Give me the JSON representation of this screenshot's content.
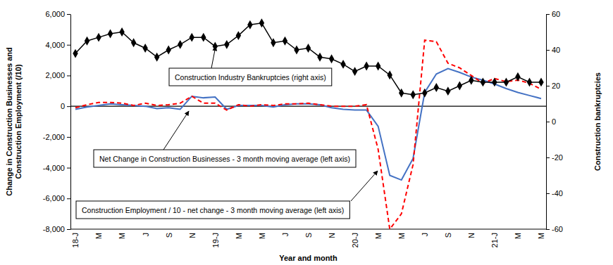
{
  "chart_data": {
    "type": "line",
    "xlabel": "Year and month",
    "ylabel": "Change in Construction Businesses and Construction Employment (/10)",
    "y2label": "Construction bankruptcies",
    "categories": [
      "18-J",
      null,
      "M",
      null,
      "M",
      null,
      "J",
      null,
      "S",
      null,
      "N",
      null,
      "19-J",
      null,
      "M",
      null,
      "M",
      null,
      "J",
      null,
      "S",
      null,
      "N",
      null,
      "20-J",
      null,
      "M",
      null,
      "M",
      null,
      "J",
      null,
      "S",
      null,
      "N",
      null,
      "21-J",
      null,
      "M",
      null,
      "M"
    ],
    "ylim": [
      -8000,
      6000
    ],
    "yticks": [
      {
        "value": -8000,
        "label": "-8,000"
      },
      {
        "value": -6000,
        "label": "-6,000"
      },
      {
        "value": -4000,
        "label": "-4,000"
      },
      {
        "value": -2000,
        "label": "-2,000"
      },
      0,
      {
        "value": 2000,
        "label": "2,000"
      },
      {
        "value": 4000,
        "label": "4,000"
      },
      {
        "value": 6000,
        "label": "6,000"
      }
    ],
    "y2lim": [
      -60,
      60
    ],
    "y2ticks": [
      -60,
      -40,
      -20,
      0,
      20,
      40,
      60
    ],
    "series": [
      {
        "name": "Construction Industry Bankruptcies (right axis)",
        "color": "#000000",
        "axis": "y2",
        "marker": "diamond",
        "line_style": "solid",
        "values": [
          38,
          45,
          47,
          49,
          50,
          44,
          41,
          36,
          40,
          43,
          47,
          47,
          42,
          43,
          48,
          54,
          55,
          44,
          45,
          40,
          41,
          36,
          35,
          32,
          28,
          31,
          31,
          26,
          16,
          15,
          16,
          19,
          17,
          20,
          23,
          22,
          22,
          22,
          25,
          22,
          22
        ]
      },
      {
        "name": "Net Change in Construction Businesses - 3 month moving average (left axis)",
        "color": "#4472c4",
        "line_style": "solid",
        "values": [
          -200,
          -50,
          50,
          150,
          100,
          50,
          0,
          -150,
          -100,
          -200,
          650,
          550,
          600,
          -200,
          50,
          50,
          50,
          -50,
          100,
          150,
          150,
          100,
          -100,
          -200,
          -250,
          -250,
          -1300,
          -4500,
          -4800,
          -3400,
          900,
          2100,
          2450,
          2200,
          1900,
          1700,
          1450,
          1150,
          900,
          700,
          500
        ]
      },
      {
        "name": "Construction Employment / 10 - net change - 3 month moving average (left axis)",
        "color": "#ff0000",
        "line_style": "dashed",
        "values": [
          -100,
          100,
          250,
          250,
          200,
          50,
          200,
          50,
          100,
          200,
          650,
          200,
          200,
          -250,
          100,
          0,
          100,
          50,
          150,
          150,
          200,
          100,
          0,
          0,
          0,
          100,
          -2800,
          -8000,
          -7000,
          -3800,
          4300,
          4200,
          2800,
          2500,
          2000,
          1500,
          1800,
          1600,
          1700,
          1500,
          1100
        ]
      }
    ]
  }
}
